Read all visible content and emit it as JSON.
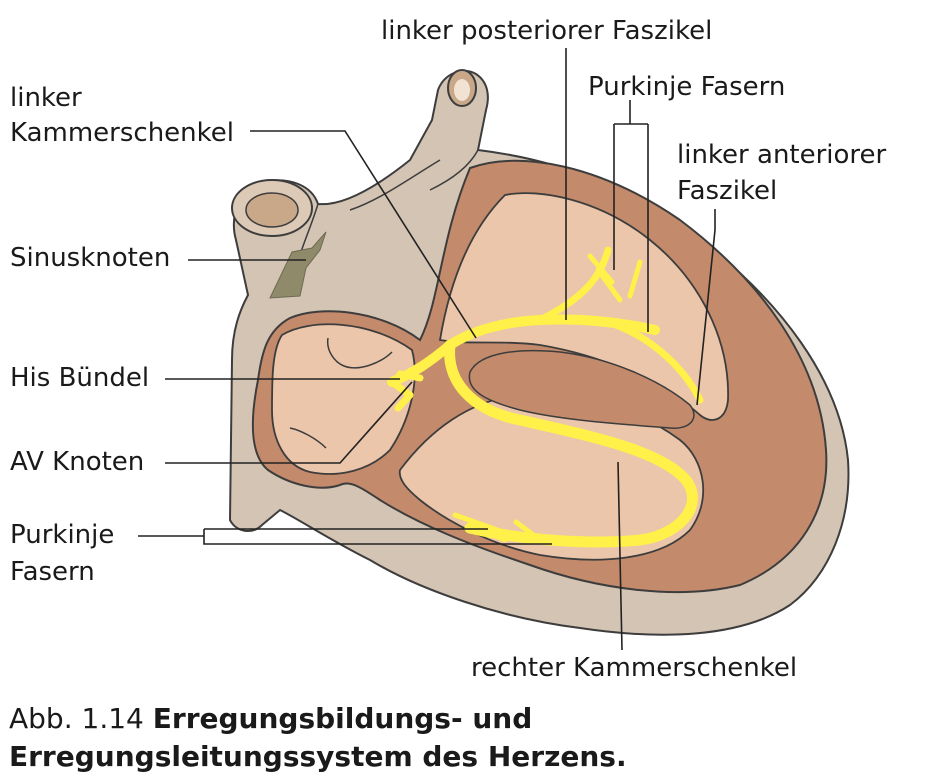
{
  "labels": {
    "linker_kammerschenkel_1": "linker",
    "linker_kammerschenkel_2": "Kammerschenkel",
    "sinusknoten": "Sinusknoten",
    "his_buendel": "His Bündel",
    "av_knoten": "AV Knoten",
    "purkinje_left_1": "Purkinje",
    "purkinje_left_2": "Fasern",
    "linker_posteriorer_faszikel": "linker posteriorer Faszikel",
    "purkinje_top": "Purkinje Fasern",
    "linker_anteriorer_1": "linker anteriorer",
    "linker_anteriorer_2": "Faszikel",
    "rechter_kammerschenkel": "rechter Kammerschenkel"
  },
  "caption": {
    "number": "Abb. 1.14",
    "text": "Erregungsbildungs- und Erregungsleitungssystem des Herzens."
  },
  "colors": {
    "outer_tissue": "#d4c4b4",
    "myocardium": "#c38a6c",
    "chamber": "#ebc6aa",
    "conduction": "#fff04a",
    "sinus_node": "#8e8a6a",
    "outline": "#3d3d3d",
    "leader": "#222222"
  }
}
